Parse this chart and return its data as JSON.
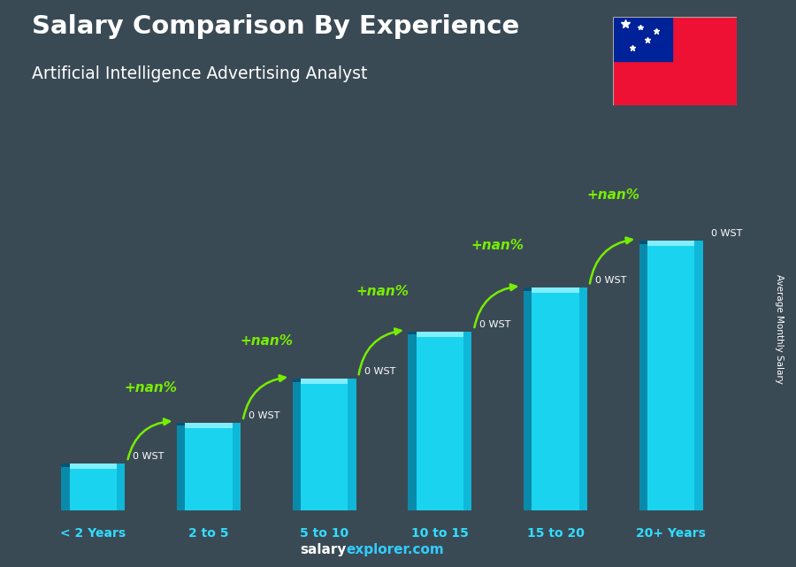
{
  "title": "Salary Comparison By Experience",
  "subtitle": "Artificial Intelligence Advertising Analyst",
  "ylabel": "Average Monthly Salary",
  "categories": [
    "< 2 Years",
    "2 to 5",
    "5 to 10",
    "10 to 15",
    "15 to 20",
    "20+ Years"
  ],
  "bar_heights": [
    0.15,
    0.28,
    0.42,
    0.57,
    0.71,
    0.86
  ],
  "bar_labels": [
    "0 WST",
    "0 WST",
    "0 WST",
    "0 WST",
    "0 WST",
    "0 WST"
  ],
  "pct_labels": [
    "+nan%",
    "+nan%",
    "+nan%",
    "+nan%",
    "+nan%"
  ],
  "bar_face_color": "#1ad4ef",
  "bar_left_color": "#0a8aaa",
  "bar_right_color": "#0fb8d8",
  "bar_top_color": "#80eeff",
  "bar_top_dark": "#005577",
  "arrow_color": "#77ee00",
  "pct_color": "#77ee00",
  "title_color": "#ffffff",
  "subtitle_color": "#ffffff",
  "bar_label_color": "#ffffff",
  "cat_label_color": "#33ddff",
  "bg_color": "#3a4a55",
  "watermark_salary_color": "#ffffff",
  "watermark_explorer_color": "#33ccff",
  "flag_red": "#ee1133",
  "flag_blue": "#002299",
  "bar_width": 0.55,
  "xlim": [
    -0.6,
    5.6
  ],
  "ylim": [
    0.0,
    1.12
  ]
}
